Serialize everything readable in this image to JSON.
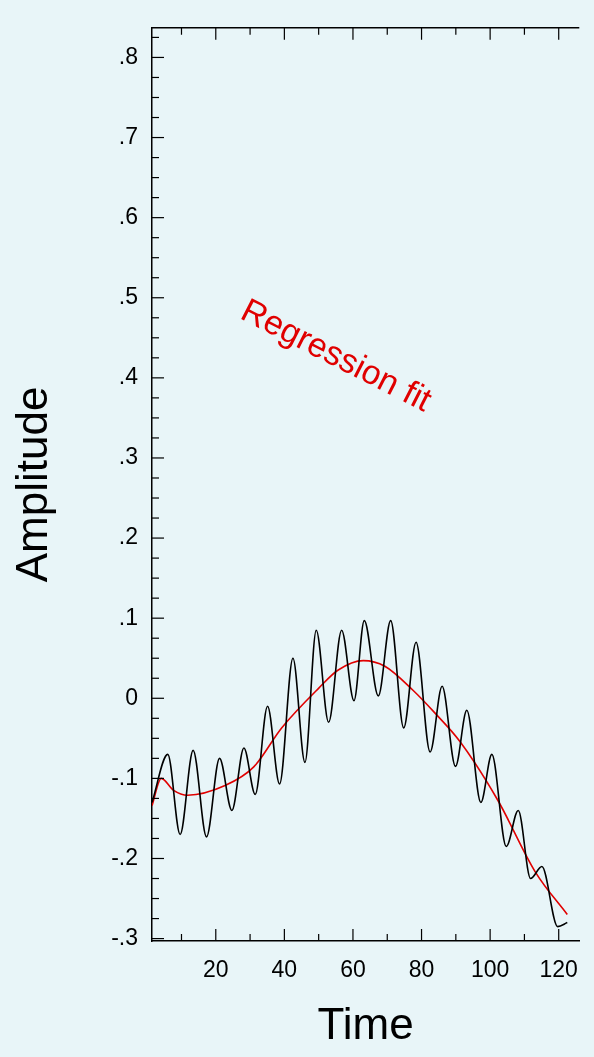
{
  "chart_data": {
    "type": "line",
    "xlabel": "Time",
    "ylabel": "Amplitude",
    "grid": false,
    "legend": false,
    "marker": "none",
    "line_style": "solid",
    "xlim": [
      1.4,
      126
    ],
    "ylim": [
      -0.303,
      0.837
    ],
    "xticks": [
      {
        "value": 10,
        "label": null
      },
      20,
      {
        "value": 30,
        "label": null
      },
      40,
      {
        "value": 50,
        "label": null
      },
      60,
      {
        "value": 70,
        "label": null
      },
      80,
      {
        "value": 90,
        "label": null
      },
      100,
      {
        "value": 110,
        "label": null
      },
      120
    ],
    "yticks": [
      {
        "value": -0.3,
        "label": "-.3"
      },
      {
        "value": -0.275,
        "label": null
      },
      {
        "value": -0.25,
        "label": null
      },
      {
        "value": -0.225,
        "label": null
      },
      {
        "value": -0.2,
        "label": "-.2"
      },
      {
        "value": -0.175,
        "label": null
      },
      {
        "value": -0.15,
        "label": null
      },
      {
        "value": -0.125,
        "label": null
      },
      {
        "value": -0.1,
        "label": "-.1"
      },
      {
        "value": -0.075,
        "label": null
      },
      {
        "value": -0.05,
        "label": null
      },
      {
        "value": -0.025,
        "label": null
      },
      {
        "value": 0,
        "label": "0"
      },
      {
        "value": 0.025,
        "label": null
      },
      {
        "value": 0.05,
        "label": null
      },
      {
        "value": 0.075,
        "label": null
      },
      {
        "value": 0.1,
        "label": ".1"
      },
      {
        "value": 0.125,
        "label": null
      },
      {
        "value": 0.15,
        "label": null
      },
      {
        "value": 0.175,
        "label": null
      },
      {
        "value": 0.2,
        "label": ".2"
      },
      {
        "value": 0.225,
        "label": null
      },
      {
        "value": 0.25,
        "label": null
      },
      {
        "value": 0.275,
        "label": null
      },
      {
        "value": 0.3,
        "label": ".3"
      },
      {
        "value": 0.325,
        "label": null
      },
      {
        "value": 0.35,
        "label": null
      },
      {
        "value": 0.375,
        "label": null
      },
      {
        "value": 0.4,
        "label": ".4"
      },
      {
        "value": 0.425,
        "label": null
      },
      {
        "value": 0.45,
        "label": null
      },
      {
        "value": 0.475,
        "label": null
      },
      {
        "value": 0.5,
        "label": ".5"
      },
      {
        "value": 0.525,
        "label": null
      },
      {
        "value": 0.55,
        "label": null
      },
      {
        "value": 0.575,
        "label": null
      },
      {
        "value": 0.6,
        "label": ".6"
      },
      {
        "value": 0.625,
        "label": null
      },
      {
        "value": 0.65,
        "label": null
      },
      {
        "value": 0.675,
        "label": null
      },
      {
        "value": 0.7,
        "label": ".7"
      },
      {
        "value": 0.725,
        "label": null
      },
      {
        "value": 0.75,
        "label": null
      },
      {
        "value": 0.775,
        "label": null
      },
      {
        "value": 0.8,
        "label": ".8"
      },
      {
        "value": 0.825,
        "label": null
      }
    ],
    "series": [
      {
        "color": "#000000",
        "x": [
          1.4,
          6,
          9.6,
          13.4,
          17.3,
          21.1,
          24.7,
          28.2,
          31.5,
          35.1,
          38.6,
          42.5,
          46,
          49.3,
          52.9,
          56.7,
          60.3,
          63.3,
          67.4,
          71,
          74.8,
          78.4,
          82.5,
          86,
          89.9,
          93.2,
          97.3,
          100.5,
          104.7,
          108.2,
          111.8,
          115.1,
          119.7,
          122.5
        ],
        "values": [
          -0.13,
          -0.07,
          -0.17,
          -0.065,
          -0.173,
          -0.075,
          -0.14,
          -0.062,
          -0.12,
          -0.01,
          -0.107,
          0.05,
          -0.08,
          0.085,
          -0.03,
          0.085,
          -0.003,
          0.097,
          0.003,
          0.097,
          -0.037,
          0.07,
          -0.067,
          0.015,
          -0.085,
          -0.015,
          -0.13,
          -0.07,
          -0.185,
          -0.14,
          -0.225,
          -0.21,
          -0.285,
          -0.28
        ]
      },
      {
        "name": "Regression fit",
        "color": "#e00000",
        "x": [
          1.4,
          4.1,
          7.7,
          11.8,
          22.7,
          31,
          39.2,
          50.1,
          55.6,
          63,
          69.3,
          77.5,
          83.6,
          91.2,
          102.2,
          113.2,
          122.5
        ],
        "values": [
          -0.134,
          -0.1,
          -0.115,
          -0.121,
          -0.109,
          -0.086,
          -0.037,
          0.013,
          0.035,
          0.047,
          0.04,
          0.01,
          -0.017,
          -0.054,
          -0.127,
          -0.217,
          -0.27
        ]
      }
    ]
  }
}
